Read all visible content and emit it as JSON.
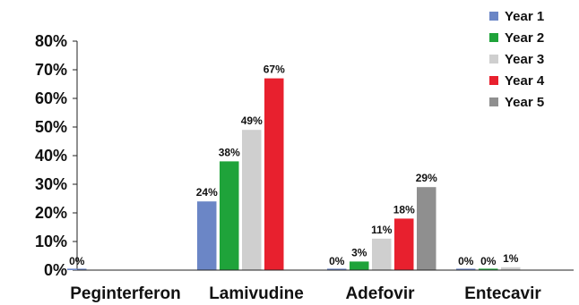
{
  "chart_data": {
    "type": "bar",
    "categories": [
      "Peginterferon",
      "Lamivudine",
      "Adefovir",
      "Entecavir"
    ],
    "series": [
      {
        "name": "Year 1",
        "color": "#6b86c6",
        "values": [
          0,
          24,
          0,
          0
        ],
        "labels": [
          "0%",
          "24%",
          "0%",
          "0%"
        ]
      },
      {
        "name": "Year 2",
        "color": "#1fa33a",
        "values": [
          null,
          38,
          3,
          0
        ],
        "labels": [
          null,
          "38%",
          "3%",
          "0%"
        ]
      },
      {
        "name": "Year 3",
        "color": "#cfcfcf",
        "values": [
          null,
          49,
          11,
          1
        ],
        "labels": [
          null,
          "49%",
          "11%",
          "1%"
        ]
      },
      {
        "name": "Year 4",
        "color": "#e8202e",
        "values": [
          null,
          67,
          18,
          null
        ],
        "labels": [
          null,
          "67%",
          "18%",
          null
        ]
      },
      {
        "name": "Year 5",
        "color": "#8f8f8f",
        "values": [
          null,
          null,
          29,
          null
        ],
        "labels": [
          null,
          null,
          "29%",
          null
        ]
      }
    ],
    "y_ticks": [
      "0%",
      "10%",
      "20%",
      "30%",
      "40%",
      "50%",
      "60%",
      "70%",
      "80%"
    ],
    "ylim": [
      0,
      80
    ],
    "title": "",
    "xlabel": "",
    "ylabel": "",
    "legend_position": "top-right",
    "grid": false
  }
}
